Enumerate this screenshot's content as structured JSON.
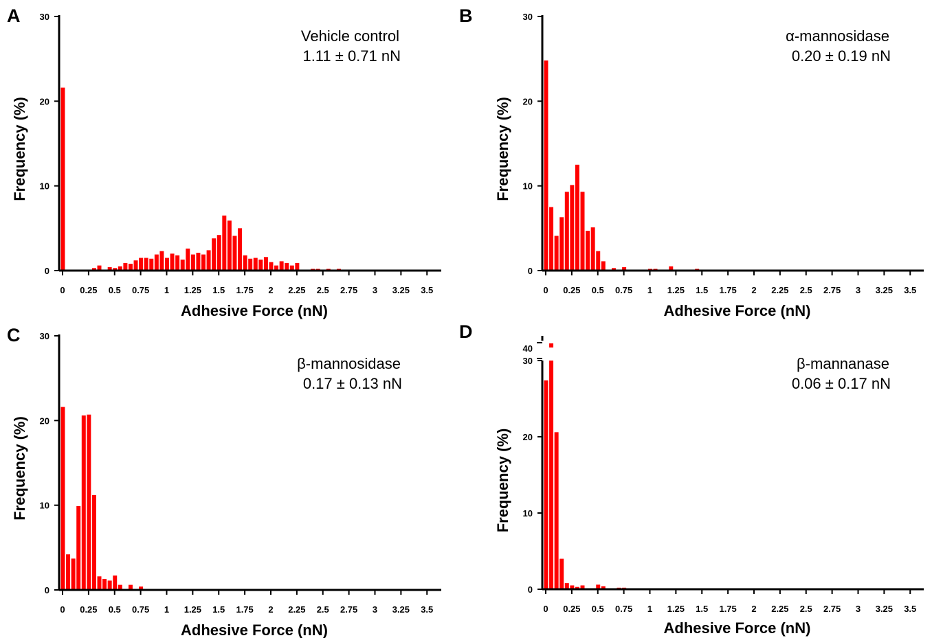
{
  "chart_data": [
    {
      "type": "bar",
      "panel_label": "A",
      "annotation": [
        "Vehicle control",
        "1.11 ± 0.71 nN"
      ],
      "xlabel": "Adhesive Force (nN)",
      "ylabel": "Frequency (%)",
      "xlim": [
        0,
        3.5
      ],
      "ylim": [
        0,
        30
      ],
      "x_tick_labels": [
        "0",
        "0.25",
        "0.5",
        "0.75",
        "1",
        "1.25",
        "1.5",
        "1.75",
        "2",
        "2.25",
        "2.5",
        "2.75",
        "3",
        "3.25",
        "3.5"
      ],
      "y_tick_labels": [
        "0",
        "10",
        "20",
        "30"
      ],
      "bin_width": 0.05,
      "x": [
        0,
        0.3,
        0.35,
        0.4,
        0.45,
        0.5,
        0.55,
        0.6,
        0.65,
        0.7,
        0.75,
        0.8,
        0.85,
        0.9,
        0.95,
        1.0,
        1.05,
        1.1,
        1.15,
        1.2,
        1.25,
        1.3,
        1.35,
        1.4,
        1.45,
        1.5,
        1.55,
        1.6,
        1.65,
        1.7,
        1.75,
        1.8,
        1.85,
        1.9,
        1.95,
        2.0,
        2.05,
        2.1,
        2.15,
        2.2,
        2.25,
        2.35,
        2.4,
        2.45,
        2.55,
        2.65
      ],
      "values": [
        21.6,
        0.3,
        0.6,
        0.1,
        0.4,
        0.3,
        0.5,
        0.9,
        0.8,
        1.2,
        1.5,
        1.5,
        1.4,
        1.9,
        2.3,
        1.5,
        2.0,
        1.8,
        1.3,
        2.6,
        1.9,
        2.1,
        1.9,
        2.4,
        3.8,
        4.2,
        6.5,
        5.9,
        4.1,
        5.0,
        1.8,
        1.4,
        1.5,
        1.3,
        1.6,
        1.0,
        0.6,
        1.1,
        0.9,
        0.6,
        0.9,
        0.1,
        0.2,
        0.2,
        0.2,
        0.2
      ],
      "color": "#ff0000"
    },
    {
      "type": "bar",
      "panel_label": "B",
      "annotation": [
        "α-mannosidase",
        "0.20 ± 0.19 nN"
      ],
      "xlabel": "Adhesive Force (nN)",
      "ylabel": "Frequency (%)",
      "xlim": [
        0,
        3.5
      ],
      "ylim": [
        0,
        30
      ],
      "x_tick_labels": [
        "0",
        "0.25",
        "0.5",
        "0.75",
        "1",
        "1.25",
        "1.5",
        "1.75",
        "2",
        "2.25",
        "2.5",
        "2.75",
        "3",
        "3.25",
        "3.5"
      ],
      "y_tick_labels": [
        "0",
        "10",
        "20",
        "30"
      ],
      "bin_width": 0.05,
      "x": [
        0,
        0.05,
        0.1,
        0.15,
        0.2,
        0.25,
        0.3,
        0.35,
        0.4,
        0.45,
        0.5,
        0.55,
        0.65,
        0.75,
        1.0,
        1.05,
        1.1,
        1.2,
        1.45
      ],
      "values": [
        24.8,
        7.5,
        4.1,
        6.3,
        9.3,
        10.1,
        12.5,
        9.3,
        4.7,
        5.1,
        2.3,
        1.1,
        0.3,
        0.4,
        0.2,
        0.2,
        0.1,
        0.5,
        0.2
      ],
      "color": "#ff0000"
    },
    {
      "type": "bar",
      "panel_label": "C",
      "annotation": [
        "β-mannosidase",
        "0.17 ± 0.13 nN"
      ],
      "xlabel": "Adhesive Force (nN)",
      "ylabel": "Frequency (%)",
      "xlim": [
        0,
        3.5
      ],
      "ylim": [
        0,
        30
      ],
      "x_tick_labels": [
        "0",
        "0.25",
        "0.5",
        "0.75",
        "1",
        "1.25",
        "1.5",
        "1.75",
        "2",
        "2.25",
        "2.5",
        "2.75",
        "3",
        "3.25",
        "3.5"
      ],
      "y_tick_labels": [
        "0",
        "10",
        "20",
        "30"
      ],
      "bin_width": 0.05,
      "x": [
        0,
        0.05,
        0.1,
        0.15,
        0.2,
        0.25,
        0.3,
        0.35,
        0.4,
        0.45,
        0.5,
        0.55,
        0.65,
        0.75
      ],
      "values": [
        21.6,
        4.2,
        3.7,
        9.9,
        20.6,
        20.7,
        11.2,
        1.6,
        1.3,
        1.1,
        1.7,
        0.6,
        0.6,
        0.4
      ],
      "color": "#ff0000"
    },
    {
      "type": "bar",
      "panel_label": "D",
      "annotation": [
        "β-mannanase",
        "0.06 ± 0.17 nN"
      ],
      "xlabel": "Adhesive Force (nN)",
      "ylabel": "Frequency (%)",
      "xlim": [
        0,
        3.5
      ],
      "ylim": [
        0,
        30
      ],
      "axis_break": true,
      "upper_segment_tick": "40",
      "x_tick_labels": [
        "0",
        "0.25",
        "0.5",
        "0.75",
        "1",
        "1.25",
        "1.5",
        "1.75",
        "2",
        "2.25",
        "2.5",
        "2.75",
        "3",
        "3.25",
        "3.5"
      ],
      "y_tick_labels": [
        "0",
        "10",
        "20",
        "30"
      ],
      "bin_width": 0.05,
      "x": [
        0,
        0.05,
        0.1,
        0.15,
        0.2,
        0.25,
        0.3,
        0.35,
        0.5,
        0.55,
        0.7,
        0.75
      ],
      "values": [
        27.4,
        41.0,
        20.6,
        4.0,
        0.8,
        0.5,
        0.3,
        0.5,
        0.6,
        0.4,
        0.2,
        0.2
      ],
      "color": "#ff0000"
    }
  ]
}
